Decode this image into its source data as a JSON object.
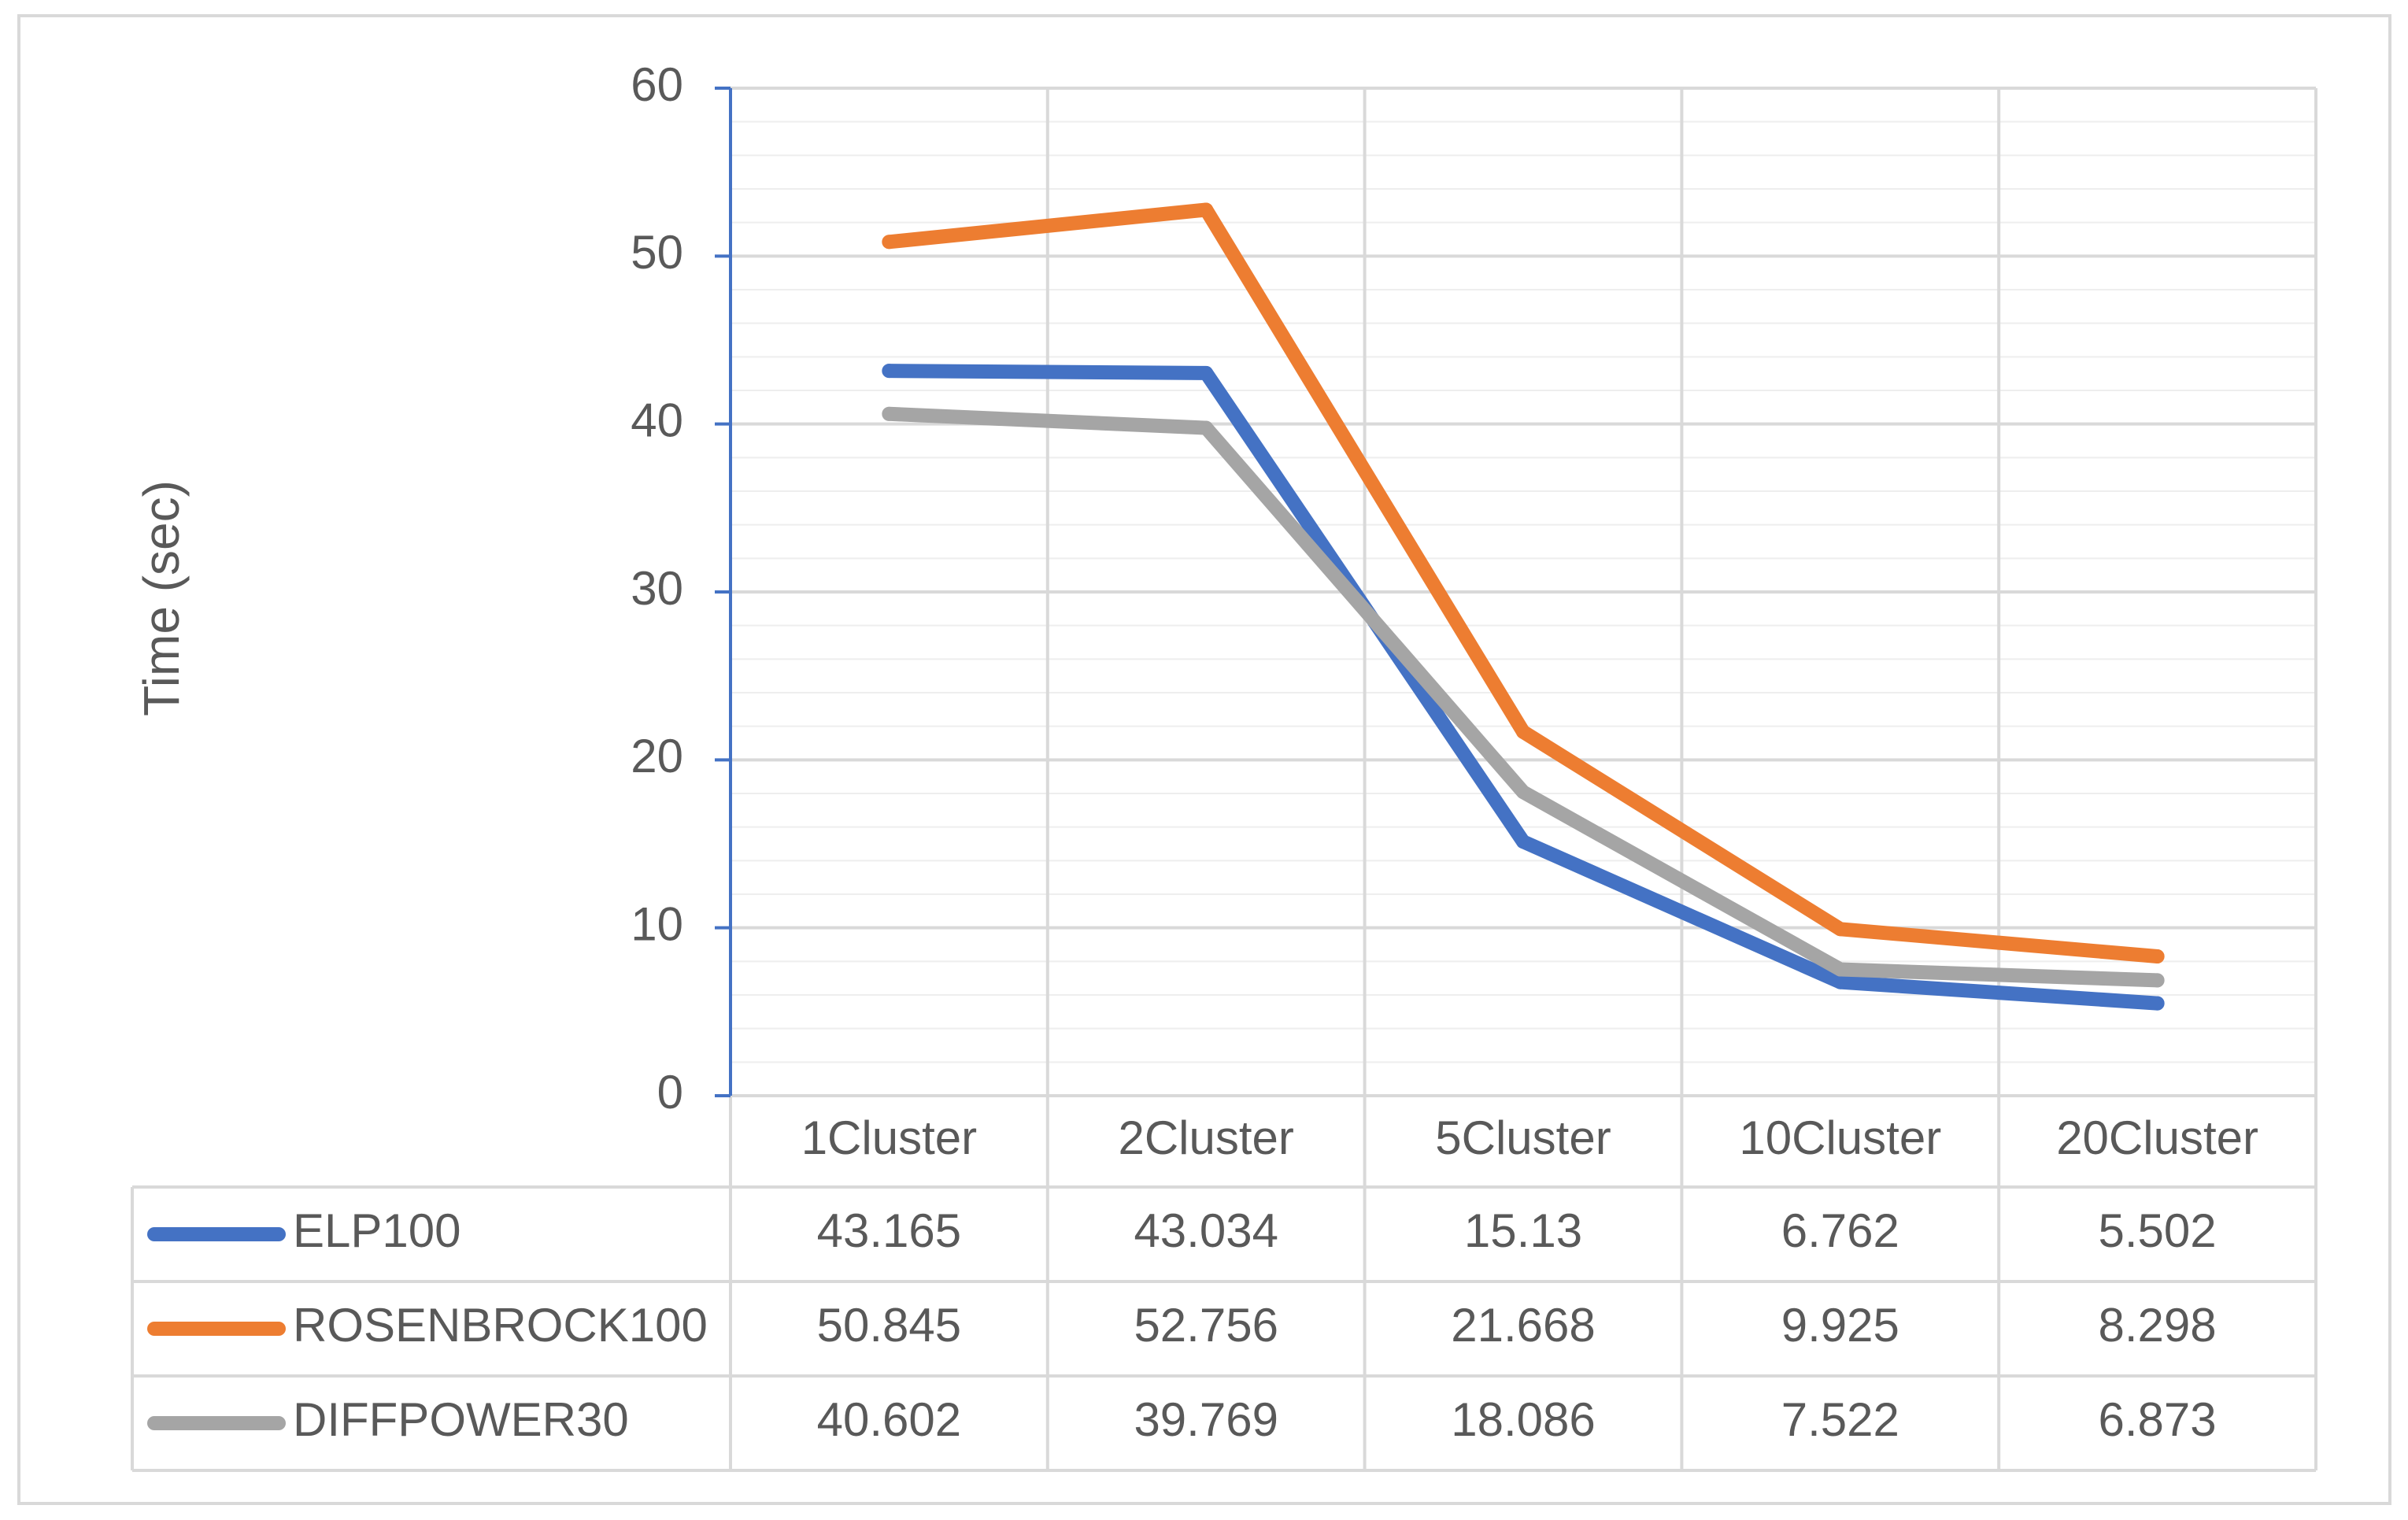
{
  "chart_data": {
    "type": "line",
    "title": "",
    "xlabel": "",
    "ylabel": "Time (sec)",
    "ylim": [
      0,
      60
    ],
    "yticks": [
      0,
      10,
      20,
      30,
      40,
      50,
      60
    ],
    "grid": true,
    "minor_grid": true,
    "legend": "data-table-left",
    "categories": [
      "1Cluster",
      "2Cluster",
      "5Cluster",
      "10Cluster",
      "20Cluster"
    ],
    "series": [
      {
        "name": "ELP100",
        "color": "#4472C4",
        "values": [
          43.165,
          43.034,
          15.13,
          6.762,
          5.502
        ],
        "labels": [
          "43.165",
          "43.034",
          "15.13",
          "6.762",
          "5.502"
        ]
      },
      {
        "name": "ROSENBROCK100",
        "color": "#ED7D31",
        "values": [
          50.845,
          52.756,
          21.668,
          9.925,
          8.298
        ],
        "labels": [
          "50.845",
          "52.756",
          "21.668",
          "9.925",
          "8.298"
        ]
      },
      {
        "name": "DIFFPOWER30",
        "color": "#A5A5A5",
        "values": [
          40.602,
          39.769,
          18.086,
          7.522,
          6.873
        ],
        "labels": [
          "40.602",
          "39.769",
          "18.086",
          "7.522",
          "6.873"
        ]
      }
    ],
    "axis_color": "#4472C4",
    "grid_color": "#D9D9D9",
    "text_color": "#595959"
  }
}
